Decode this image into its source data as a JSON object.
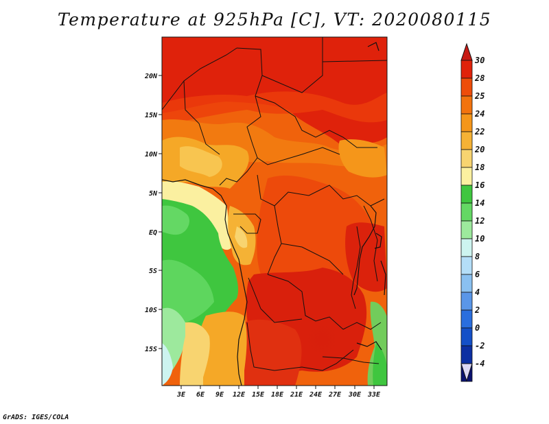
{
  "title": "Temperature at 925hPa [C], VT: 2020080115",
  "credit": "GrADS: IGES/COLA",
  "map": {
    "lat_ticks": [
      "20N",
      "15N",
      "10N",
      "5N",
      "EQ",
      "5S",
      "10S",
      "15S"
    ],
    "lon_ticks": [
      "3E",
      "6E",
      "9E",
      "12E",
      "15E",
      "18E",
      "21E",
      "24E",
      "27E",
      "30E",
      "33E"
    ]
  },
  "colorbar": {
    "labels": [
      "30",
      "28",
      "25",
      "24",
      "22",
      "20",
      "18",
      "16",
      "14",
      "12",
      "10",
      "8",
      "6",
      "4",
      "2",
      "0",
      "-2",
      "-4"
    ],
    "colors": [
      "#e0220a",
      "#ee4d0a",
      "#f2730e",
      "#f5961a",
      "#f5b235",
      "#f8d470",
      "#fbf0a0",
      "#3fc63f",
      "#64d864",
      "#9de99d",
      "#cdf4f0",
      "#b4def8",
      "#8ac0f0",
      "#5a96e8",
      "#2a6ede",
      "#1450c8",
      "#0c2fa2",
      "#0a1270"
    ],
    "top_cap_color": "#c71a14",
    "bottom_cap_color": "#dcd8f4"
  }
}
